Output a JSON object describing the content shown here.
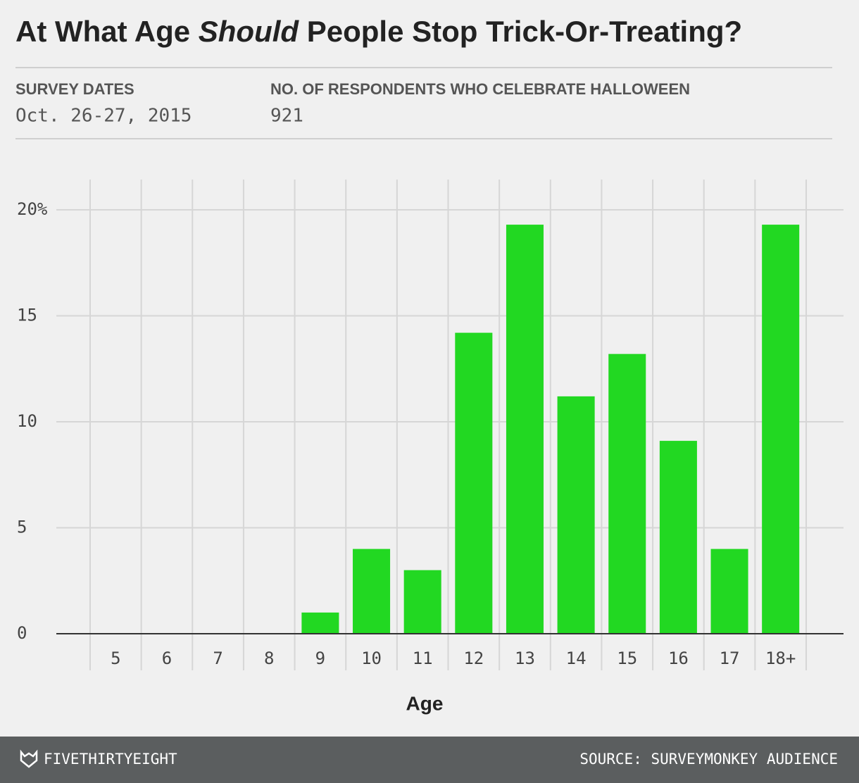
{
  "header": {
    "title": {
      "lead": "At What Age",
      "emphasis": "Should",
      "tail": "People Stop Trick-Or-Treating?"
    },
    "meta": [
      {
        "label": "SURVEY DATES",
        "value": "Oct. 26-27, 2015"
      },
      {
        "label": "NO. OF RESPONDENTS WHO CELEBRATE HALLOWEEN",
        "value": "921"
      }
    ]
  },
  "chart_data": {
    "type": "bar",
    "xlabel": "Age",
    "categories": [
      "5",
      "6",
      "7",
      "8",
      "9",
      "10",
      "11",
      "12",
      "13",
      "14",
      "15",
      "16",
      "17",
      "18+"
    ],
    "values": [
      0,
      0,
      0,
      0,
      1,
      4,
      3,
      14.2,
      19.3,
      11.2,
      13.2,
      9.1,
      4,
      19.3
    ],
    "color": "#22d822",
    "ylim": [
      0,
      20
    ],
    "yticks": [
      0,
      5,
      10,
      15,
      {
        "value": 20,
        "label": "20%"
      }
    ],
    "grid": true
  },
  "footer": {
    "brand": "FIVETHIRTYEIGHT",
    "source": "SOURCE: SURVEYMONKEY AUDIENCE"
  }
}
